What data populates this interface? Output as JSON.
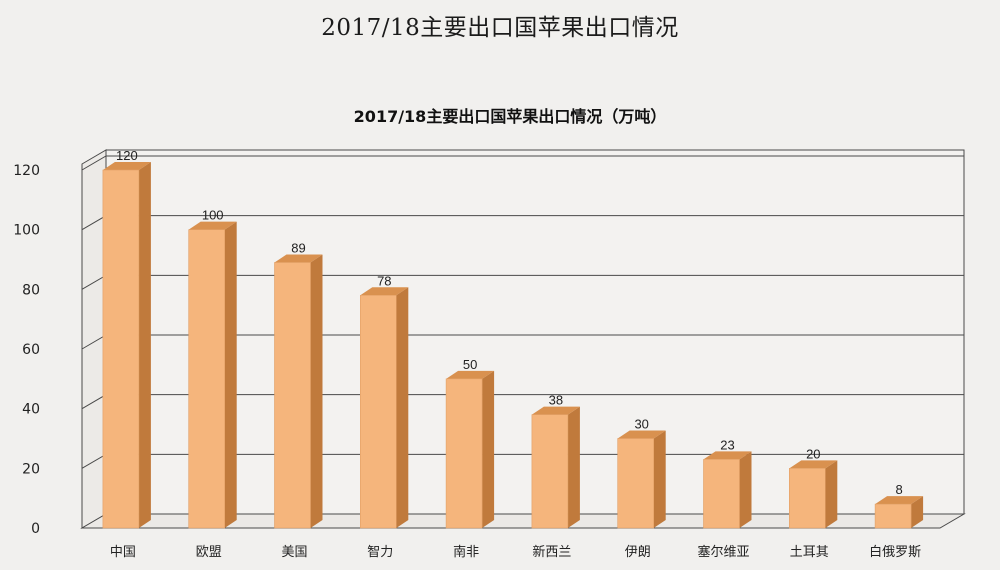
{
  "page": {
    "title": "2017/18主要出口国苹果出口情况"
  },
  "chart_data": {
    "type": "bar",
    "title": "2017/18主要出口国苹果出口情况（万吨）",
    "xlabel": "",
    "ylabel": "",
    "categories": [
      "中国",
      "欧盟",
      "美国",
      "智力",
      "南非",
      "新西兰",
      "伊朗",
      "塞尔维亚",
      "土耳其",
      "白俄罗斯"
    ],
    "values": [
      120,
      100,
      89,
      78,
      50,
      38,
      30,
      23,
      20,
      8
    ],
    "data_labels": [
      "120",
      "100",
      "89",
      "78",
      "50",
      "38",
      "30",
      "23",
      "20",
      "8"
    ],
    "ylim": [
      0,
      120
    ],
    "yticks": [
      "0",
      "20",
      "40",
      "60",
      "80",
      "100",
      "120"
    ],
    "grid": true,
    "legend": "none",
    "style": "3d-column",
    "colors": {
      "bar_front": "#f5b57c",
      "bar_side": "#c07a3c",
      "bar_top": "#d9914f",
      "grid": "#4a4a4a",
      "background": "#f1f0ee"
    }
  }
}
